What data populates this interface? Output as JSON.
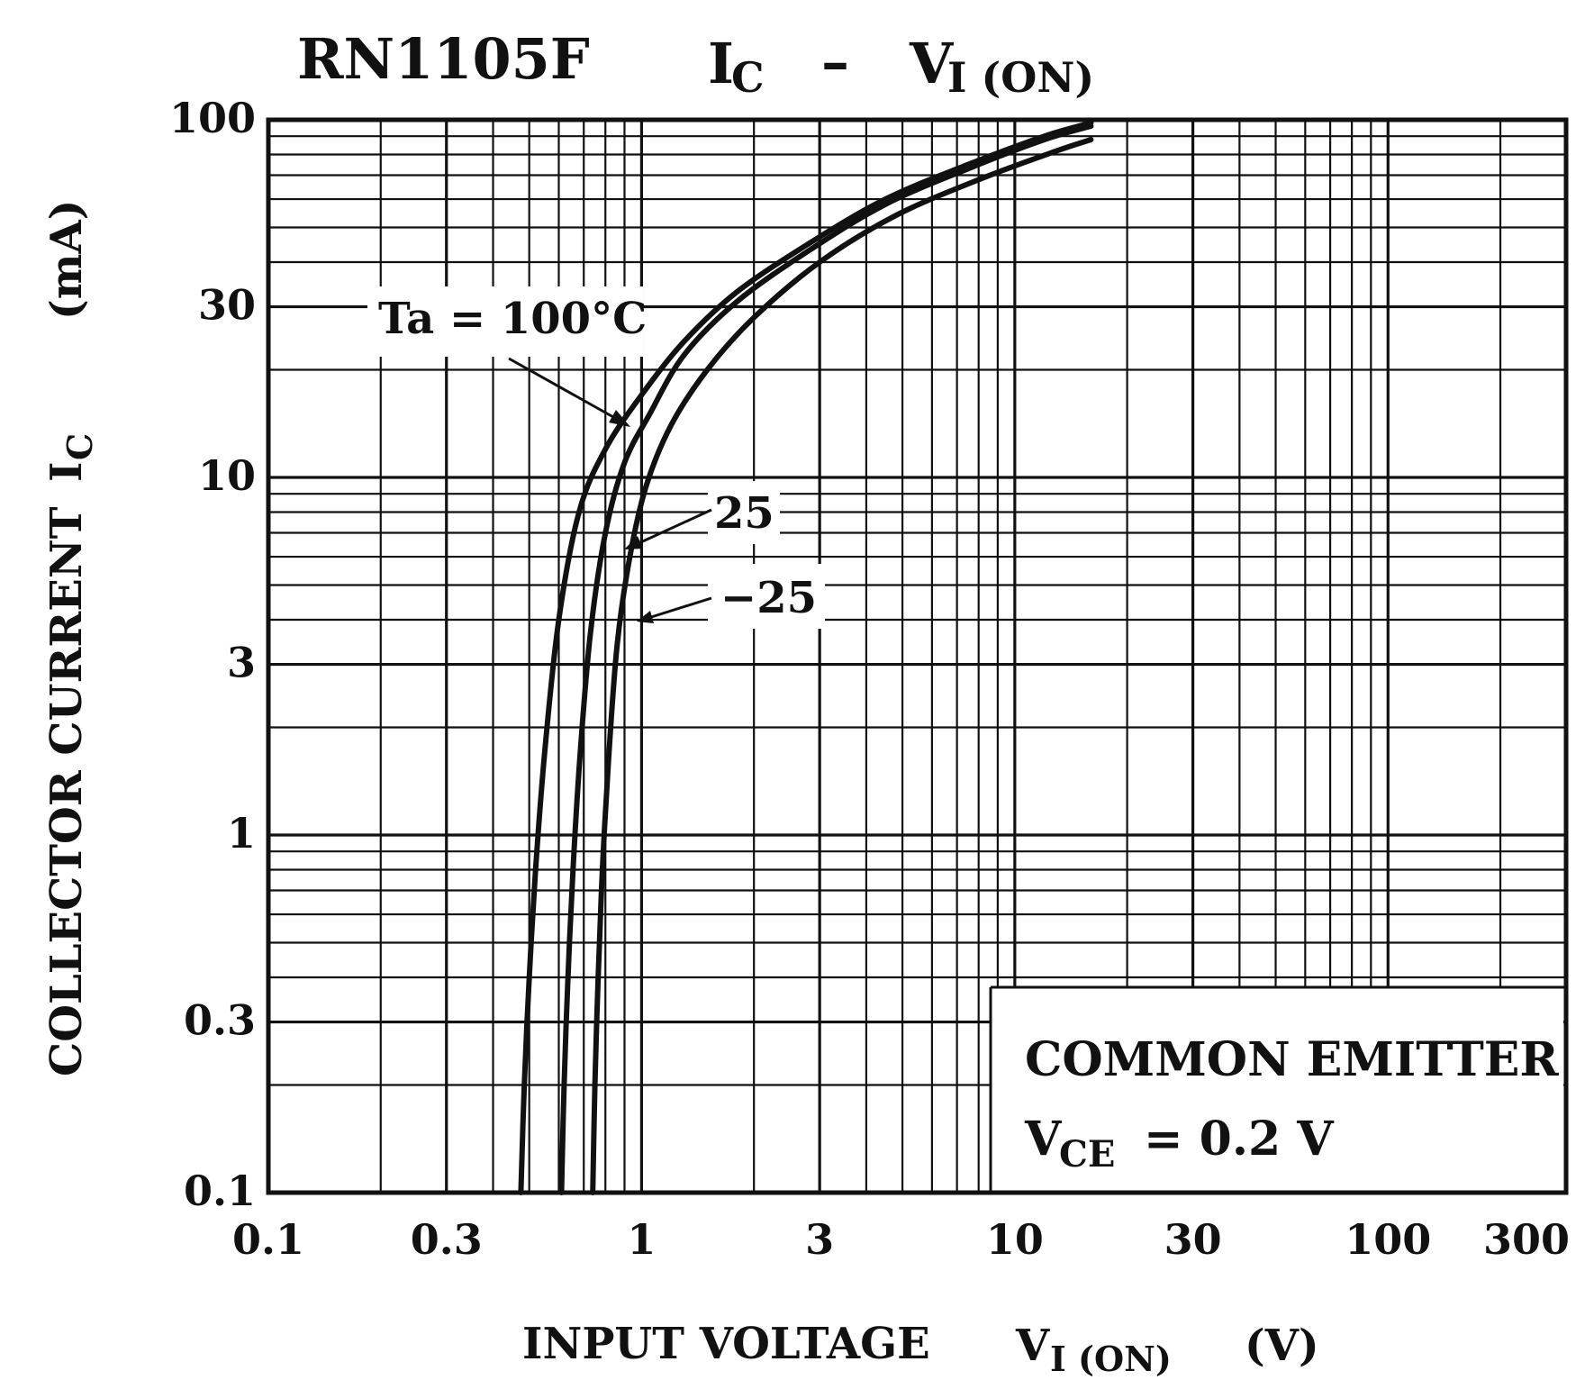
{
  "chart_data": {
    "type": "line",
    "title": {
      "device": "RN1105F",
      "main": "I",
      "main_sub": "C",
      "dash": "–",
      "v": "V",
      "v_sub": "I (ON)"
    },
    "xlabel": {
      "text": "INPUT VOLTAGE",
      "symbol": "V",
      "symbol_sub": "I (ON)",
      "unit": "(V)"
    },
    "ylabel": {
      "text": "COLLECTOR CURRENT",
      "symbol": "I",
      "symbol_sub": "C",
      "unit": "(mA)"
    },
    "x_scale": "log",
    "y_scale": "log",
    "xlim": [
      0.1,
      300
    ],
    "ylim": [
      0.1,
      100
    ],
    "x_ticks": [
      0.1,
      0.3,
      1,
      3,
      10,
      30,
      100,
      300
    ],
    "x_tick_labels": [
      "0.1",
      "0.3",
      "1",
      "3",
      "10",
      "30",
      "100",
      "300"
    ],
    "y_ticks": [
      0.1,
      0.3,
      1,
      3,
      10,
      30,
      100
    ],
    "y_tick_labels": [
      "0.1",
      "0.3",
      "1",
      "3",
      "10",
      "30",
      "100"
    ],
    "grid": true,
    "series": [
      {
        "name": "Ta = 100°C",
        "x": [
          0.475,
          0.485,
          0.5,
          0.52,
          0.55,
          0.6,
          0.68,
          0.8,
          1.0,
          1.3,
          1.8,
          2.8,
          4.5,
          7.5,
          12,
          16
        ],
        "y": [
          0.1,
          0.2,
          0.4,
          0.8,
          1.7,
          4,
          8,
          12,
          17,
          24,
          33,
          45,
          60,
          75,
          90,
          98
        ]
      },
      {
        "name": "25",
        "x": [
          0.61,
          0.62,
          0.635,
          0.655,
          0.685,
          0.73,
          0.8,
          0.9,
          1.05,
          1.3,
          1.8,
          2.8,
          4.5,
          7.5,
          12,
          16
        ],
        "y": [
          0.1,
          0.2,
          0.4,
          0.8,
          1.7,
          3.7,
          7,
          11,
          15,
          22,
          31,
          43,
          58,
          73,
          88,
          96
        ]
      },
      {
        "name": "−25",
        "x": [
          0.74,
          0.75,
          0.765,
          0.785,
          0.815,
          0.86,
          0.93,
          1.03,
          1.2,
          1.5,
          2.0,
          3.0,
          4.8,
          8,
          13,
          16
        ],
        "y": [
          0.1,
          0.2,
          0.4,
          0.8,
          1.6,
          3.4,
          6,
          9.5,
          14,
          20,
          28,
          40,
          54,
          68,
          82,
          88
        ]
      }
    ],
    "annotations": {
      "ta_label": "Ta = 100°C",
      "label_25": "25",
      "label_m25": "−25",
      "common_emitter": "COMMON EMITTER",
      "vce_symbol": "V",
      "vce_sub": "CE",
      "vce_value": "= 0.2 V"
    }
  }
}
